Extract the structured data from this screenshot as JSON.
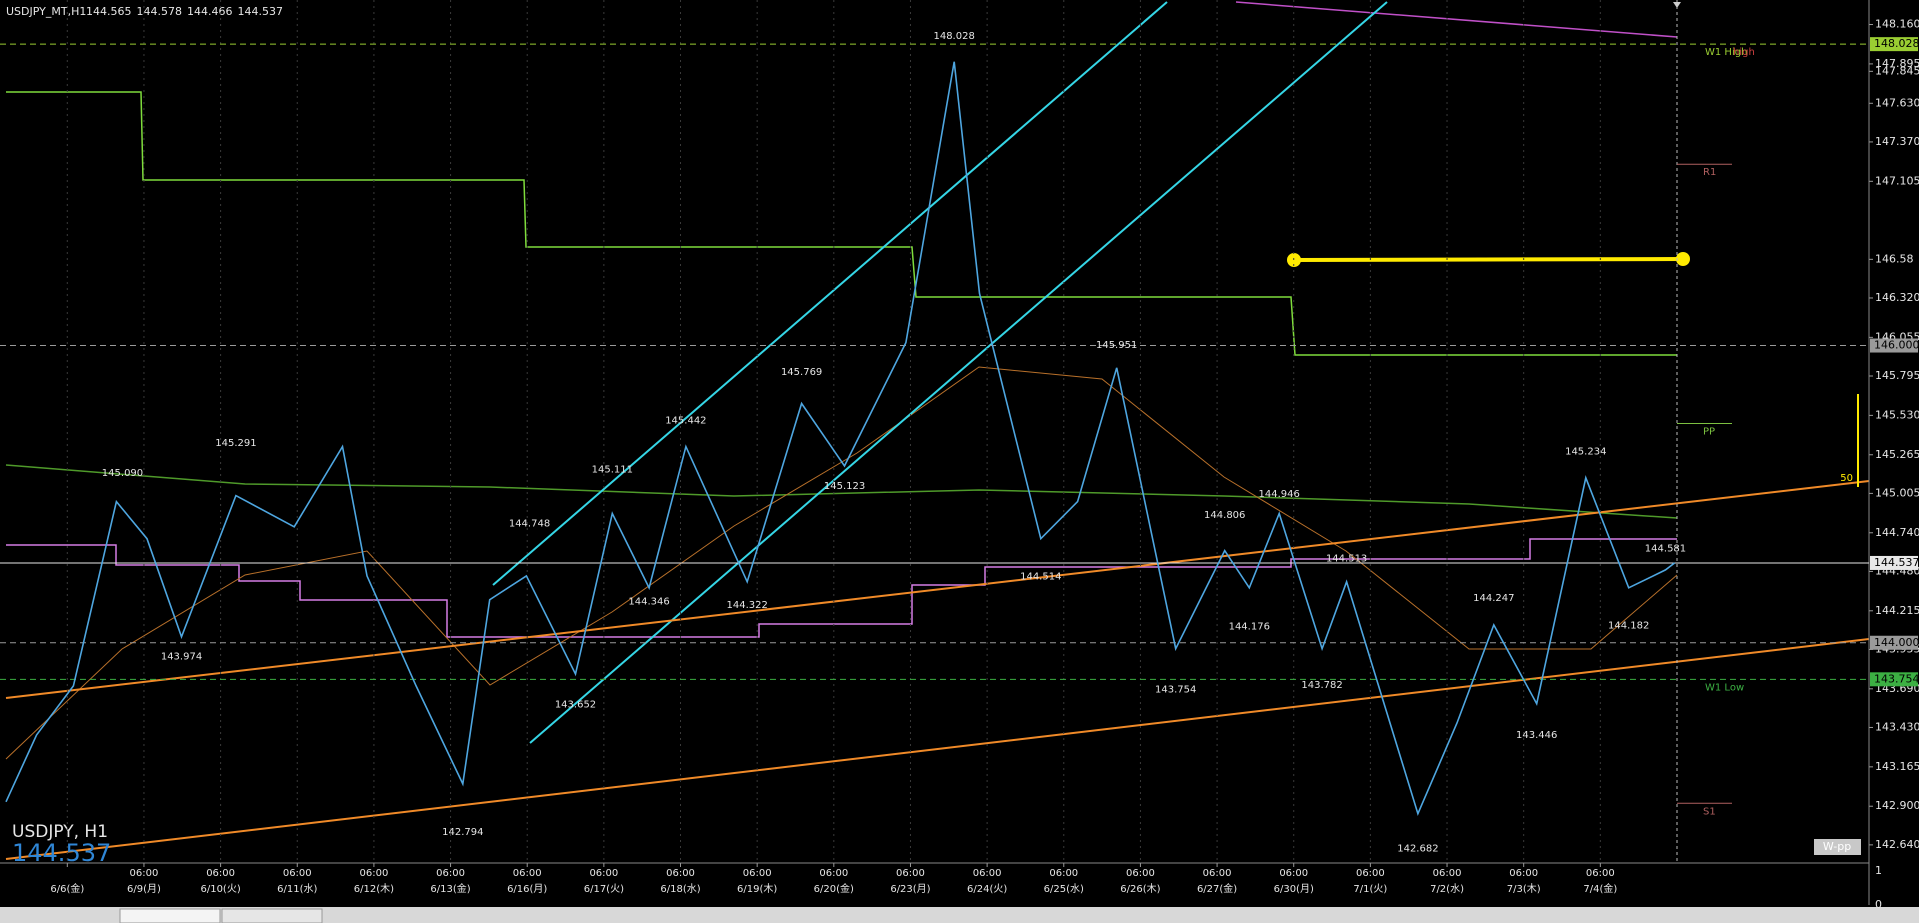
{
  "chart_data": {
    "type": "line",
    "symbol": "USDJPY_MT,H1",
    "ohlc": [
      144.565,
      144.578,
      144.466,
      144.537
    ],
    "corner_symbol": "USDJPY, H1",
    "bid": 144.537,
    "xlim": [
      -0.878,
      23.505
    ],
    "ylim": [
      142.518,
      148.325
    ],
    "yticks": [
      {
        "value": 148.16,
        "label": "148.160"
      },
      147.895,
      {
        "value": 147.63,
        "label": "147.630"
      },
      {
        "value": 147.37,
        "label": "147.370"
      },
      147.105,
      147.845,
      146.58,
      {
        "value": 146.32,
        "label": "146.320"
      },
      146.055,
      145.795,
      {
        "value": 145.53,
        "label": "145.530"
      },
      145.265,
      145.005,
      {
        "value": 144.74,
        "label": "144.740"
      },
      {
        "value": 144.48,
        "label": "144.480"
      },
      144.215,
      143.955,
      {
        "value": 143.69,
        "label": "143.690"
      },
      {
        "value": 143.43,
        "label": "143.430"
      },
      143.165,
      {
        "value": 142.9,
        "label": "142.900"
      },
      {
        "value": 142.64,
        "label": "142.640"
      }
    ],
    "xticks": [
      {
        "value": 0,
        "label": "6/6(金)"
      },
      {
        "value": 1,
        "label": "6/9(月)"
      },
      {
        "value": 2,
        "label": "6/10(火)"
      },
      {
        "value": 3,
        "label": "6/11(水)"
      },
      {
        "value": 4,
        "label": "6/12(木)"
      },
      {
        "value": 5,
        "label": "6/13(金)"
      },
      {
        "value": 6,
        "label": "6/16(月)"
      },
      {
        "value": 7,
        "label": "6/17(火)"
      },
      {
        "value": 8,
        "label": "6/18(水)"
      },
      {
        "value": 9,
        "label": "6/19(木)"
      },
      {
        "value": 10,
        "label": "6/20(金)"
      },
      {
        "value": 11,
        "label": "6/23(月)"
      },
      {
        "value": 12,
        "label": "6/24(火)"
      },
      {
        "value": 13,
        "label": "6/25(水)"
      },
      {
        "value": 14,
        "label": "6/26(木)"
      },
      {
        "value": 15,
        "label": "6/27(金)"
      },
      {
        "value": 16,
        "label": "6/30(月)"
      },
      {
        "value": 17,
        "label": "7/1(火)"
      },
      {
        "value": 18,
        "label": "7/2(水)"
      },
      {
        "value": 19,
        "label": "7/3(木)"
      },
      {
        "value": 20,
        "label": "7/4(金)"
      }
    ],
    "time_ticks": [
      {
        "value": 1,
        "label": "06:00"
      },
      {
        "value": 2,
        "label": "06:00"
      },
      {
        "value": 3,
        "label": "06:00"
      },
      {
        "value": 4,
        "label": "06:00"
      },
      {
        "value": 5,
        "label": "06:00"
      },
      {
        "value": 6,
        "label": "06:00"
      },
      {
        "value": 7,
        "label": "06:00"
      },
      {
        "value": 8,
        "label": "06:00"
      },
      {
        "value": 9,
        "label": "06:00"
      },
      {
        "value": 10,
        "label": "06:00"
      },
      {
        "value": 11,
        "label": "06:00"
      },
      {
        "value": 12,
        "label": "06:00"
      },
      {
        "value": 13,
        "label": "06:00"
      },
      {
        "value": 14,
        "label": "06:00"
      },
      {
        "value": 15,
        "label": "06:00"
      },
      {
        "value": 16,
        "label": "06:00"
      },
      {
        "value": 17,
        "label": "06:00"
      },
      {
        "value": 18,
        "label": "06:00"
      },
      {
        "value": 19,
        "label": "06:00"
      },
      {
        "value": 20,
        "label": "06:00"
      }
    ],
    "grid": "vertical",
    "series": [
      {
        "name": "USDJPY",
        "color": "#4ea6e0",
        "x": [
          -0.8,
          -0.4,
          0.08,
          0.64,
          1.04,
          1.49,
          2.2,
          2.96,
          3.59,
          3.91,
          4.55,
          5.16,
          5.51,
          5.99,
          6.63,
          7.11,
          7.59,
          8.07,
          8.87,
          9.58,
          10.14,
          10.94,
          11.57,
          11.9,
          12.7,
          13.18,
          13.69,
          14.46,
          15.1,
          15.42,
          15.81,
          16.37,
          16.69,
          17.62,
          18.13,
          18.61,
          19.17,
          19.81,
          20.37,
          20.85,
          20.97
        ],
        "values": [
          142.93,
          143.38,
          143.71,
          144.95,
          144.7,
          144.04,
          144.99,
          144.78,
          145.32,
          144.45,
          143.71,
          143.05,
          144.29,
          144.45,
          143.79,
          144.87,
          144.37,
          145.32,
          144.41,
          145.61,
          145.19,
          146.02,
          147.91,
          146.35,
          144.7,
          144.95,
          145.85,
          143.96,
          144.62,
          144.37,
          144.87,
          143.96,
          144.41,
          142.85,
          143.46,
          144.12,
          143.59,
          145.11,
          144.37,
          144.49,
          144.537
        ]
      }
    ],
    "annotations": [
      {
        "x": 0.72,
        "value": 145.09,
        "label": "145.090"
      },
      {
        "x": 2.2,
        "value": 145.291,
        "label": "145.291"
      },
      {
        "x": 1.49,
        "value": 143.974,
        "label": "143.974"
      },
      {
        "x": 5.16,
        "value": 142.794,
        "label": "142.794"
      },
      {
        "x": 6.03,
        "value": 144.748,
        "label": "144.748"
      },
      {
        "x": 6.63,
        "value": 143.652,
        "label": "143.652"
      },
      {
        "x": 7.11,
        "value": 145.111,
        "label": "145.111"
      },
      {
        "x": 7.59,
        "value": 144.346,
        "label": "144.346"
      },
      {
        "x": 8.07,
        "value": 145.442,
        "label": "145.442"
      },
      {
        "x": 8.87,
        "value": 144.322,
        "label": "144.322"
      },
      {
        "x": 9.58,
        "value": 145.769,
        "label": "145.769"
      },
      {
        "x": 10.14,
        "value": 145.123,
        "label": "145.123"
      },
      {
        "x": 11.57,
        "value": 148.028,
        "label": "148.028"
      },
      {
        "x": 12.7,
        "value": 144.514,
        "label": "144.514"
      },
      {
        "x": 13.69,
        "value": 145.951,
        "label": "145.951"
      },
      {
        "x": 14.46,
        "value": 143.754,
        "label": "143.754"
      },
      {
        "x": 15.1,
        "value": 144.806,
        "label": "144.806"
      },
      {
        "x": 15.42,
        "value": 144.176,
        "label": "144.176"
      },
      {
        "x": 15.81,
        "value": 144.946,
        "label": "144.946"
      },
      {
        "x": 16.37,
        "value": 143.782,
        "label": "143.782"
      },
      {
        "x": 16.69,
        "value": 144.513,
        "label": "144.513"
      },
      {
        "x": 17.62,
        "value": 142.682,
        "label": "142.682"
      },
      {
        "x": 18.61,
        "value": 144.247,
        "label": "144.247"
      },
      {
        "x": 19.17,
        "value": 143.446,
        "label": "143.446"
      },
      {
        "x": 19.81,
        "value": 145.234,
        "label": "145.234"
      },
      {
        "x": 20.37,
        "value": 144.182,
        "label": "144.182"
      },
      {
        "x": 20.85,
        "value": 144.581,
        "label": "144.581"
      }
    ],
    "levels": [
      {
        "value": 148.028,
        "label": "148.028",
        "color": "#9acd32",
        "dashed": true,
        "name": "W1 High",
        "tag": "high"
      },
      {
        "value": 146.0,
        "label": "146.000",
        "color": "#9a9a9a",
        "dashed": true
      },
      {
        "value": 144.537,
        "label": "144.537",
        "color": "#e8e8e8",
        "dashed": false
      },
      {
        "value": 144.0,
        "label": "144.000",
        "color": "#9a9a9a",
        "dashed": true
      },
      {
        "value": 143.754,
        "label": "143.754",
        "color": "#3cb043",
        "dashed": true,
        "name": "W1 Low"
      }
    ],
    "pivots": [
      {
        "label": "R1",
        "value": 147.22,
        "color": "#b06060"
      },
      {
        "label": "PP",
        "value": 145.475,
        "color": "#7cc040"
      },
      {
        "label": "S1",
        "value": 142.92,
        "color": "#b06060"
      }
    ],
    "fib_label": "50",
    "indicator_box": "W-pp",
    "subwindow_ticks": [
      1,
      0
    ]
  }
}
